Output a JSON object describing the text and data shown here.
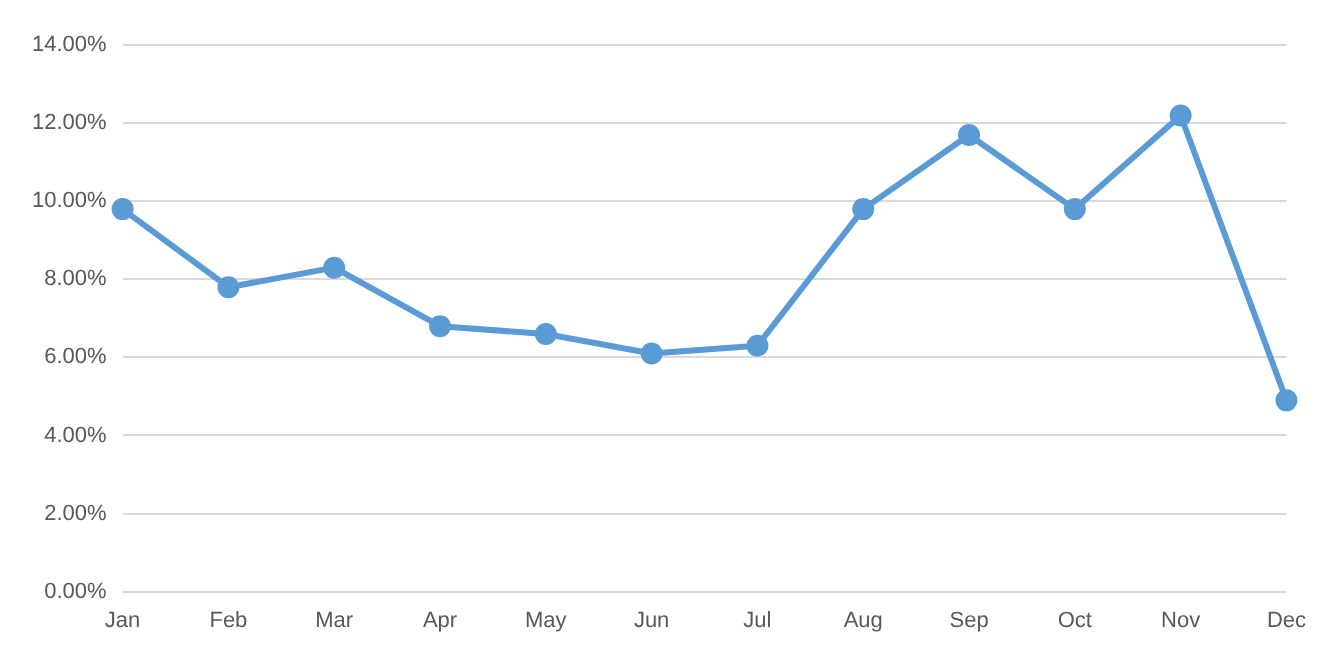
{
  "chart_data": {
    "type": "line",
    "categories": [
      "Jan",
      "Feb",
      "Mar",
      "Apr",
      "May",
      "Jun",
      "Jul",
      "Aug",
      "Sep",
      "Oct",
      "Nov",
      "Dec"
    ],
    "series": [
      {
        "color": "#5b9bd5",
        "values": [
          9.8,
          7.8,
          8.3,
          6.8,
          6.6,
          6.1,
          6.3,
          9.8,
          11.7,
          9.8,
          12.2,
          4.9
        ]
      }
    ],
    "ylim": [
      0,
      14
    ],
    "yticks": [
      {
        "value": 0,
        "label": "0.00%"
      },
      {
        "value": 2,
        "label": "2.00%"
      },
      {
        "value": 4,
        "label": "4.00%"
      },
      {
        "value": 6,
        "label": "6.00%"
      },
      {
        "value": 8,
        "label": "8.00%"
      },
      {
        "value": 10,
        "label": "10.00%"
      },
      {
        "value": 12,
        "label": "12.00%"
      },
      {
        "value": 14,
        "label": "14.00%"
      }
    ],
    "grid": "y",
    "legend": false,
    "marker": "circle",
    "line_style": "solid"
  }
}
